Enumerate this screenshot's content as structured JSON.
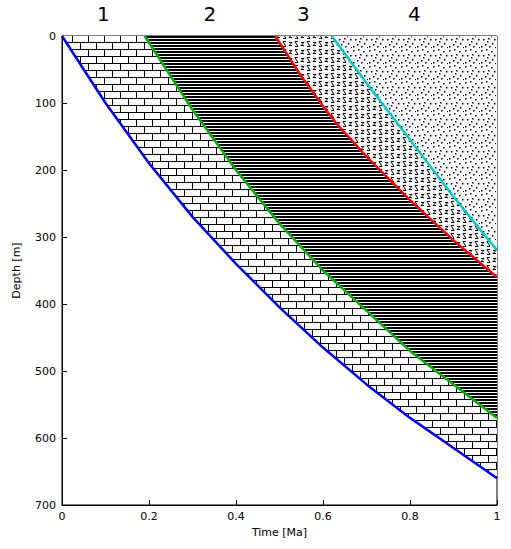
{
  "chart_data": {
    "type": "line",
    "xlabel": "Time [Ma]",
    "ylabel": "Depth [m]",
    "annotations": [
      "1",
      "2",
      "3",
      "4"
    ],
    "xlim": [
      0,
      1
    ],
    "ylim": [
      700,
      0
    ],
    "xticks": [
      0,
      0.2,
      0.4,
      0.6,
      0.8,
      1
    ],
    "yticks": [
      0,
      100,
      200,
      300,
      400,
      500,
      600,
      700
    ],
    "grid": false,
    "series": [
      {
        "color": "#0000ff",
        "x": [
          0,
          0.1,
          0.2,
          0.3,
          0.4,
          0.5,
          0.6,
          0.7,
          0.8,
          0.9,
          1
        ],
        "values": [
          0,
          100,
          190,
          270,
          340,
          405,
          465,
          520,
          570,
          615,
          660
        ]
      },
      {
        "color": "#00b000",
        "x": [
          0.19,
          0.3,
          0.4,
          0.5,
          0.6,
          0.7,
          0.8,
          0.9,
          1
        ],
        "values": [
          0,
          110,
          200,
          280,
          350,
          410,
          470,
          520,
          570
        ]
      },
      {
        "color": "#ff0000",
        "x": [
          0.49,
          0.55,
          0.6,
          0.63,
          0.7,
          0.8,
          0.9,
          1
        ],
        "values": [
          0,
          60,
          105,
          130,
          180,
          245,
          305,
          360
        ]
      },
      {
        "color": "#00cccc",
        "x": [
          0.62,
          0.7,
          0.8,
          0.9,
          1
        ],
        "values": [
          0,
          70,
          155,
          240,
          320
        ]
      }
    ]
  }
}
